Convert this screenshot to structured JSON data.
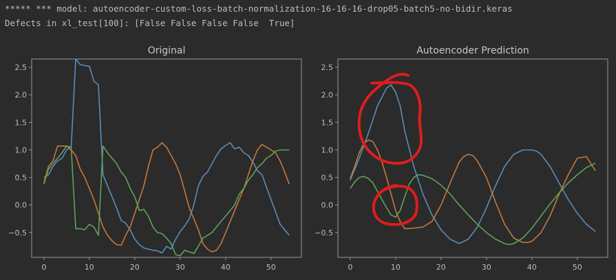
{
  "console": {
    "line1": "***** *** model: autoencoder-custom-loss-batch-normalization-16-16-16-drop05-batch5-no-bidir.keras",
    "line2": "Defects in xl_test[100]: [False False False False  True]"
  },
  "colors": {
    "background": "#2b2b2b",
    "axes_frame": "#9a9a9a",
    "series_blue": "#5b8db8",
    "series_orange": "#c8783a",
    "series_green": "#5fa35a",
    "annotation_red": "#e01c1c"
  },
  "chart_data": [
    {
      "type": "line",
      "title": "Original",
      "xlabel": "",
      "ylabel": "",
      "xlim": [
        -2.7,
        56.7
      ],
      "ylim": [
        -0.95,
        2.65
      ],
      "xticks": [
        0,
        10,
        20,
        30,
        40,
        50
      ],
      "yticks": [
        -0.5,
        0.0,
        0.5,
        1.0,
        1.5,
        2.0,
        2.5
      ],
      "ytick_labels": [
        "−0.5",
        "0.0",
        "0.5",
        "1.0",
        "1.5",
        "2.0",
        "2.5"
      ],
      "xtick_labels": [
        "0",
        "10",
        "20",
        "30",
        "40",
        "50"
      ],
      "grid": false,
      "series": [
        {
          "color": "#5b8db8",
          "x": [
            0,
            1,
            2,
            3,
            4,
            5,
            6,
            7,
            8,
            9,
            10,
            11,
            12,
            13,
            14,
            15,
            16,
            17,
            18,
            19,
            20,
            21,
            22,
            23,
            24,
            25,
            26,
            27,
            28,
            29,
            30,
            31,
            32,
            33,
            34,
            35,
            36,
            37,
            38,
            39,
            40,
            41,
            42,
            43,
            44,
            45,
            46,
            47,
            48,
            49,
            50,
            51,
            52,
            53,
            54
          ],
          "y": [
            0.5,
            0.55,
            0.7,
            0.8,
            0.85,
            1.0,
            1.05,
            2.65,
            2.55,
            2.53,
            2.52,
            2.25,
            2.18,
            0.55,
            0.35,
            0.15,
            -0.05,
            -0.28,
            -0.33,
            -0.45,
            -0.62,
            -0.72,
            -0.78,
            -0.8,
            -0.82,
            -0.83,
            -0.87,
            -0.75,
            -0.8,
            -0.62,
            -0.48,
            -0.38,
            -0.25,
            0.0,
            0.35,
            0.52,
            0.6,
            0.75,
            0.9,
            1.02,
            1.08,
            1.13,
            1.02,
            1.05,
            0.95,
            0.9,
            0.78,
            0.62,
            0.55,
            0.32,
            0.1,
            -0.12,
            -0.35,
            -0.45,
            -0.55
          ]
        },
        {
          "color": "#c8783a",
          "x": [
            0,
            1,
            2,
            3,
            4,
            5,
            6,
            7,
            8,
            9,
            10,
            11,
            12,
            13,
            14,
            15,
            16,
            17,
            18,
            19,
            20,
            21,
            22,
            23,
            24,
            25,
            26,
            27,
            28,
            29,
            30,
            31,
            32,
            33,
            34,
            35,
            36,
            37,
            38,
            39,
            40,
            41,
            42,
            43,
            44,
            45,
            46,
            47,
            48,
            49,
            50,
            51,
            52,
            53,
            54
          ],
          "y": [
            0.4,
            0.7,
            0.8,
            1.07,
            1.07,
            1.07,
            1.0,
            0.9,
            0.65,
            0.5,
            0.3,
            0.1,
            -0.15,
            -0.4,
            -0.55,
            -0.65,
            -0.72,
            -0.73,
            -0.55,
            -0.4,
            -0.15,
            0.1,
            0.35,
            0.7,
            1.0,
            1.05,
            1.13,
            1.05,
            0.9,
            0.75,
            0.55,
            0.25,
            -0.05,
            -0.25,
            -0.45,
            -0.7,
            -0.8,
            -0.85,
            -0.82,
            -0.7,
            -0.5,
            -0.3,
            -0.1,
            0.1,
            0.3,
            0.55,
            0.8,
            1.0,
            1.1,
            1.05,
            1.0,
            0.95,
            0.8,
            0.6,
            0.38
          ]
        },
        {
          "color": "#5fa35a",
          "x": [
            0,
            1,
            2,
            3,
            4,
            5,
            6,
            7,
            8,
            9,
            10,
            11,
            12,
            13,
            14,
            15,
            16,
            17,
            18,
            19,
            20,
            21,
            22,
            23,
            24,
            25,
            26,
            27,
            28,
            29,
            30,
            31,
            32,
            33,
            34,
            35,
            36,
            37,
            38,
            39,
            40,
            41,
            42,
            43,
            44,
            45,
            46,
            47,
            48,
            49,
            50,
            51,
            52,
            53,
            54
          ],
          "y": [
            0.38,
            0.65,
            0.75,
            0.85,
            0.95,
            1.07,
            1.05,
            -0.43,
            -0.43,
            -0.45,
            -0.35,
            -0.4,
            -0.55,
            1.07,
            0.95,
            0.85,
            0.75,
            0.6,
            0.5,
            0.3,
            0.15,
            -0.1,
            -0.08,
            -0.2,
            -0.4,
            -0.5,
            -0.52,
            -0.6,
            -0.7,
            -0.9,
            -0.92,
            -0.82,
            -0.85,
            -0.88,
            -0.75,
            -0.6,
            -0.55,
            -0.5,
            -0.4,
            -0.3,
            -0.2,
            -0.1,
            0.0,
            0.2,
            0.3,
            0.45,
            0.55,
            0.68,
            0.75,
            0.85,
            0.9,
            0.98,
            1.0,
            1.0,
            1.0
          ]
        }
      ]
    },
    {
      "type": "line",
      "title": "Autoencoder Prediction",
      "xlabel": "",
      "ylabel": "",
      "xlim": [
        -2.7,
        56.7
      ],
      "ylim": [
        -0.95,
        2.65
      ],
      "xticks": [
        0,
        10,
        20,
        30,
        40,
        50
      ],
      "yticks": [
        -0.5,
        0.0,
        0.5,
        1.0,
        1.5,
        2.0,
        2.5
      ],
      "ytick_labels": [
        "−0.5",
        "0.0",
        "0.5",
        "1.0",
        "1.5",
        "2.0",
        "2.5"
      ],
      "xtick_labels": [
        "0",
        "10",
        "20",
        "30",
        "40",
        "50"
      ],
      "grid": false,
      "series": [
        {
          "color": "#5b8db8",
          "x": [
            0,
            2,
            4,
            6,
            8,
            9,
            10,
            11,
            12,
            14,
            16,
            18,
            20,
            22,
            24,
            26,
            28,
            30,
            32,
            34,
            36,
            38,
            40,
            41,
            42,
            44,
            46,
            48,
            50,
            52,
            54
          ],
          "y": [
            0.45,
            0.85,
            1.3,
            1.8,
            2.12,
            2.18,
            2.05,
            1.8,
            1.35,
            0.7,
            0.2,
            -0.18,
            -0.45,
            -0.62,
            -0.7,
            -0.62,
            -0.4,
            -0.05,
            0.35,
            0.7,
            0.92,
            1.0,
            1.0,
            0.98,
            0.92,
            0.7,
            0.4,
            0.1,
            -0.15,
            -0.35,
            -0.48
          ]
        },
        {
          "color": "#c8783a",
          "x": [
            0,
            1,
            2,
            3,
            4,
            5,
            6,
            7,
            8,
            9,
            10,
            11,
            12,
            14,
            16,
            18,
            20,
            22,
            24,
            25,
            26,
            27,
            28,
            30,
            32,
            34,
            36,
            38,
            39,
            40,
            42,
            44,
            46,
            48,
            50,
            52,
            54
          ],
          "y": [
            0.48,
            0.7,
            0.95,
            1.12,
            1.18,
            1.15,
            1.0,
            0.78,
            0.5,
            0.2,
            -0.1,
            -0.3,
            -0.43,
            -0.42,
            -0.4,
            -0.3,
            0.0,
            0.4,
            0.78,
            0.88,
            0.92,
            0.9,
            0.8,
            0.5,
            0.05,
            -0.35,
            -0.6,
            -0.68,
            -0.68,
            -0.66,
            -0.5,
            -0.2,
            0.2,
            0.55,
            0.85,
            0.88,
            0.62
          ]
        },
        {
          "color": "#5fa35a",
          "x": [
            0,
            1,
            2,
            3,
            4,
            5,
            6,
            7,
            8,
            9,
            10,
            11,
            12,
            13,
            14,
            15,
            16,
            18,
            20,
            22,
            24,
            26,
            28,
            30,
            32,
            34,
            35,
            36,
            38,
            40,
            42,
            44,
            46,
            48,
            50,
            52,
            54
          ],
          "y": [
            0.3,
            0.42,
            0.5,
            0.52,
            0.48,
            0.4,
            0.25,
            0.1,
            -0.05,
            -0.18,
            -0.22,
            -0.1,
            0.15,
            0.38,
            0.5,
            0.55,
            0.54,
            0.48,
            0.36,
            0.2,
            0.0,
            -0.18,
            -0.35,
            -0.5,
            -0.62,
            -0.7,
            -0.72,
            -0.7,
            -0.6,
            -0.42,
            -0.2,
            0.02,
            0.22,
            0.4,
            0.55,
            0.68,
            0.76
          ]
        }
      ]
    }
  ]
}
